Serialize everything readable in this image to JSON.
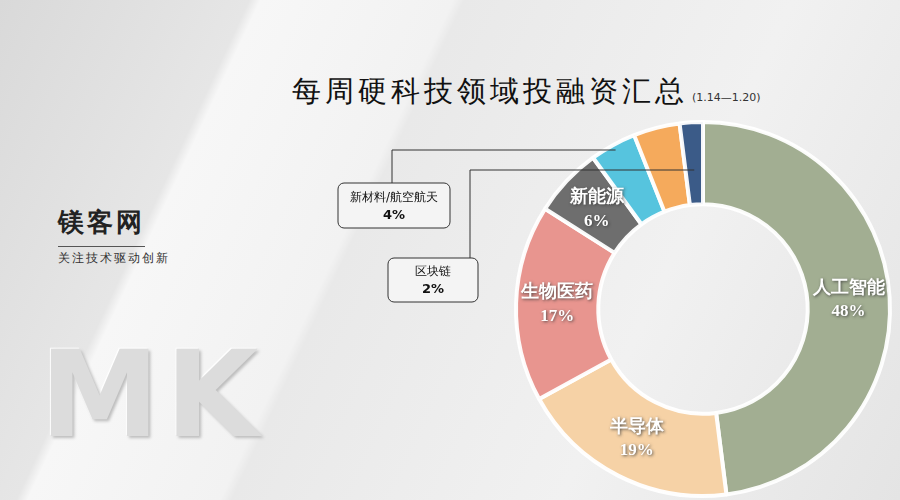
{
  "page": {
    "brand": "镁客网",
    "tagline": "关注技术驱动创新",
    "watermark": "MK"
  },
  "chart_data": {
    "type": "doughnut",
    "title": "每周硬科技领域投融资汇总",
    "subtitle": "(1.14—1.20)",
    "categories": [
      "人工智能",
      "半导体",
      "生物医药",
      "新能源",
      "新材料/航空航天",
      null,
      "区块链"
    ],
    "values": [
      48,
      19,
      17,
      6,
      4,
      4,
      2
    ],
    "value_labels": [
      "48%",
      "19%",
      "17%",
      "6%",
      "4%",
      null,
      "2%"
    ],
    "colors": [
      "#a2ae92",
      "#f6d2a6",
      "#e8958f",
      "#6e6e6e",
      "#56c4de",
      "#f5aa5c",
      "#3b5b88"
    ],
    "data_labels": true
  }
}
